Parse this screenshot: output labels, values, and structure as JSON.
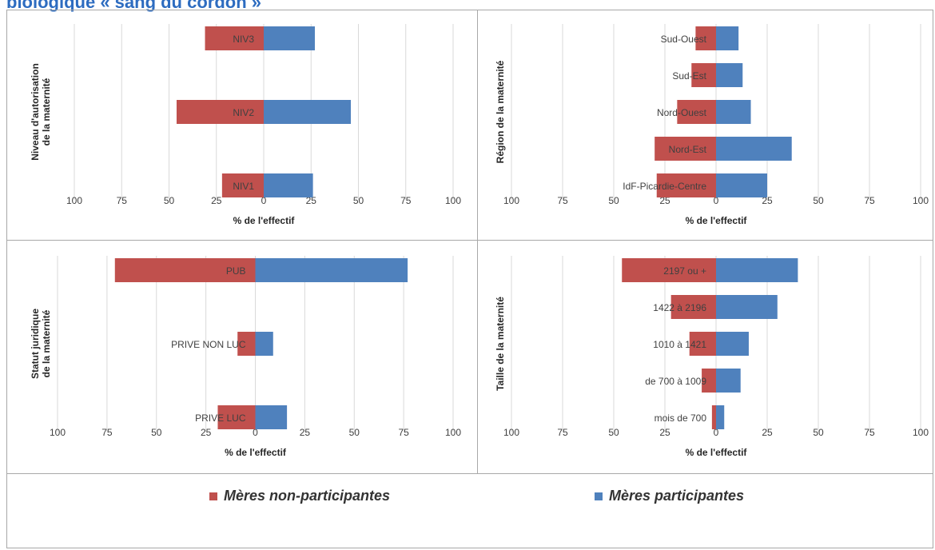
{
  "page": {
    "heading": "biologique « sang du cordon »"
  },
  "colors": {
    "non_participant": "#c0504d",
    "participant": "#4f81bd",
    "grid": "#d9d9d9",
    "text": "#404040"
  },
  "legend": {
    "non_participant": "Mères non-participantes",
    "participant": "Mères participantes"
  },
  "chart_data": [
    {
      "type": "bar",
      "orientation": "horizontal-diverging",
      "ylabel": "Niveau d'autorisation de la maternité",
      "xlabel": "% de l'effectif",
      "xlim": [
        -100,
        100
      ],
      "ticks": [
        100,
        75,
        50,
        25,
        0,
        25,
        50,
        75,
        100
      ],
      "categories": [
        "NIV3",
        "NIV2",
        "NIV1"
      ],
      "series": [
        {
          "name": "Mères non-participantes",
          "values": [
            -31,
            -46,
            -22
          ]
        },
        {
          "name": "Mères participantes",
          "values": [
            27,
            46,
            26
          ]
        }
      ]
    },
    {
      "type": "bar",
      "orientation": "horizontal-diverging",
      "ylabel": "Région de la maternité",
      "xlabel": "% de l'effectif",
      "xlim": [
        -100,
        100
      ],
      "ticks": [
        100,
        75,
        50,
        25,
        0,
        25,
        50,
        75,
        100
      ],
      "categories": [
        "Sud-Ouest",
        "Sud-Est",
        "Nord-Ouest",
        "Nord-Est",
        "IdF-Picardie-Centre"
      ],
      "series": [
        {
          "name": "Mères non-participantes",
          "values": [
            -10,
            -12,
            -19,
            -30,
            -29
          ]
        },
        {
          "name": "Mères participantes",
          "values": [
            11,
            13,
            17,
            37,
            25
          ]
        }
      ]
    },
    {
      "type": "bar",
      "orientation": "horizontal-diverging",
      "ylabel": "Statut juridique de la maternité",
      "xlabel": "% de l'effectif",
      "xlim": [
        -100,
        100
      ],
      "ticks": [
        100,
        75,
        50,
        25,
        0,
        25,
        50,
        75,
        100
      ],
      "categories": [
        "PUB",
        "PRIVE NON LUC",
        "PRIVE LUC"
      ],
      "series": [
        {
          "name": "Mères non-participantes",
          "values": [
            -71,
            -9,
            -19
          ]
        },
        {
          "name": "Mères participantes",
          "values": [
            77,
            9,
            16
          ]
        }
      ]
    },
    {
      "type": "bar",
      "orientation": "horizontal-diverging",
      "ylabel": "Taille de la maternité",
      "xlabel": "% de l'effectif",
      "xlim": [
        -100,
        100
      ],
      "ticks": [
        100,
        75,
        50,
        25,
        0,
        25,
        50,
        75,
        100
      ],
      "categories": [
        "2197 ou +",
        "1422 à 2196",
        "1010 à 1421",
        "de 700 à 1009",
        "mois de 700"
      ],
      "series": [
        {
          "name": "Mères non-participantes",
          "values": [
            -46,
            -22,
            -13,
            -7,
            -2
          ]
        },
        {
          "name": "Mères participantes",
          "values": [
            40,
            30,
            16,
            12,
            4
          ]
        }
      ]
    }
  ]
}
